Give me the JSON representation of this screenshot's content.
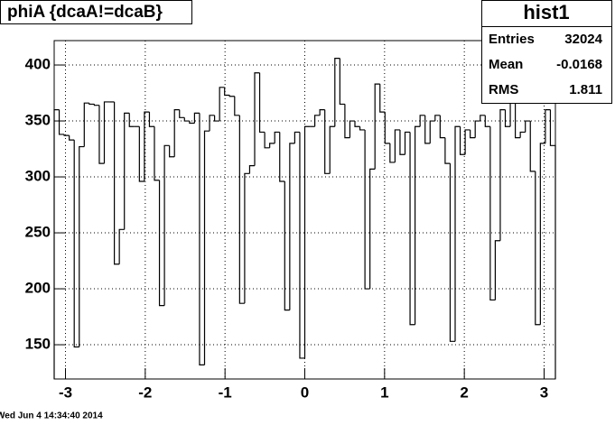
{
  "chart_data": {
    "type": "histogram",
    "title": "phiA {dcaA!=dcaB}",
    "bins": [
      -3.1416,
      -3.0788,
      -3.0159,
      -2.9531,
      -2.8903,
      -2.8274,
      -2.7646,
      -2.7018,
      -2.6389,
      -2.5761,
      -2.5133,
      -2.4504,
      -2.3876,
      -2.3248,
      -2.2619,
      -2.1991,
      -2.1363,
      -2.0735,
      -2.0106,
      -1.9478,
      -1.885,
      -1.8221,
      -1.7593,
      -1.6965,
      -1.6336,
      -1.5708,
      -1.508,
      -1.4451,
      -1.3823,
      -1.3195,
      -1.2566,
      -1.1938,
      -1.131,
      -1.0681,
      -1.0053,
      -0.9425,
      -0.8796,
      -0.8168,
      -0.754,
      -0.6912,
      -0.6283,
      -0.5655,
      -0.5027,
      -0.4398,
      -0.377,
      -0.3142,
      -0.2513,
      -0.1885,
      -0.1257,
      -0.0628,
      0,
      0.0628,
      0.1257,
      0.1885,
      0.2513,
      0.3142,
      0.377,
      0.4398,
      0.5027,
      0.5655,
      0.6283,
      0.6912,
      0.754,
      0.8168,
      0.8796,
      0.9425,
      1.0053,
      1.0681,
      1.131,
      1.1938,
      1.2566,
      1.3195,
      1.3823,
      1.4451,
      1.508,
      1.5708,
      1.6336,
      1.6965,
      1.7593,
      1.8221,
      1.885,
      1.9478,
      2.0106,
      2.0735,
      2.1363,
      2.1991,
      2.2619,
      2.3248,
      2.3876,
      2.4504,
      2.5133,
      2.5761,
      2.6389,
      2.7018,
      2.7646,
      2.8274,
      2.8903,
      2.9531,
      3.0159,
      3.0788,
      3.1416
    ],
    "values": [
      360,
      338,
      337,
      333,
      148,
      327,
      366,
      365,
      364,
      312,
      367,
      367,
      222,
      253,
      357,
      345,
      345,
      296,
      358,
      345,
      297,
      185,
      328,
      318,
      360,
      353,
      350,
      348,
      357,
      132,
      341,
      355,
      350,
      380,
      373,
      372,
      355,
      187,
      303,
      310,
      393,
      340,
      326,
      330,
      340,
      296,
      181,
      330,
      340,
      138,
      345,
      345,
      355,
      360,
      303,
      345,
      406,
      365,
      335,
      350,
      345,
      342,
      200,
      307,
      383,
      358,
      330,
      313,
      342,
      320,
      340,
      168,
      345,
      355,
      330,
      350,
      355,
      335,
      312,
      153,
      345,
      320,
      342,
      335,
      350,
      355,
      345,
      190,
      243,
      360,
      345,
      375,
      335,
      340,
      350,
      305,
      168,
      330,
      360,
      328
    ],
    "color": "#000000",
    "xlim": [
      -3.1416,
      3.1416
    ],
    "ylim": [
      119.4,
      421.8
    ],
    "xticks": [
      -3,
      -2,
      -1,
      0,
      1,
      2,
      3
    ],
    "yticks": [
      150,
      200,
      250,
      300,
      350,
      400
    ],
    "grid": true,
    "stats": {
      "title": "hist1",
      "rows": [
        {
          "label": "Entries",
          "value": 32024
        },
        {
          "label": "Mean",
          "value": -0.0168
        },
        {
          "label": "RMS",
          "value": 1.811
        }
      ]
    },
    "footer": "Wed Jun  4 14:34:40 2014"
  }
}
